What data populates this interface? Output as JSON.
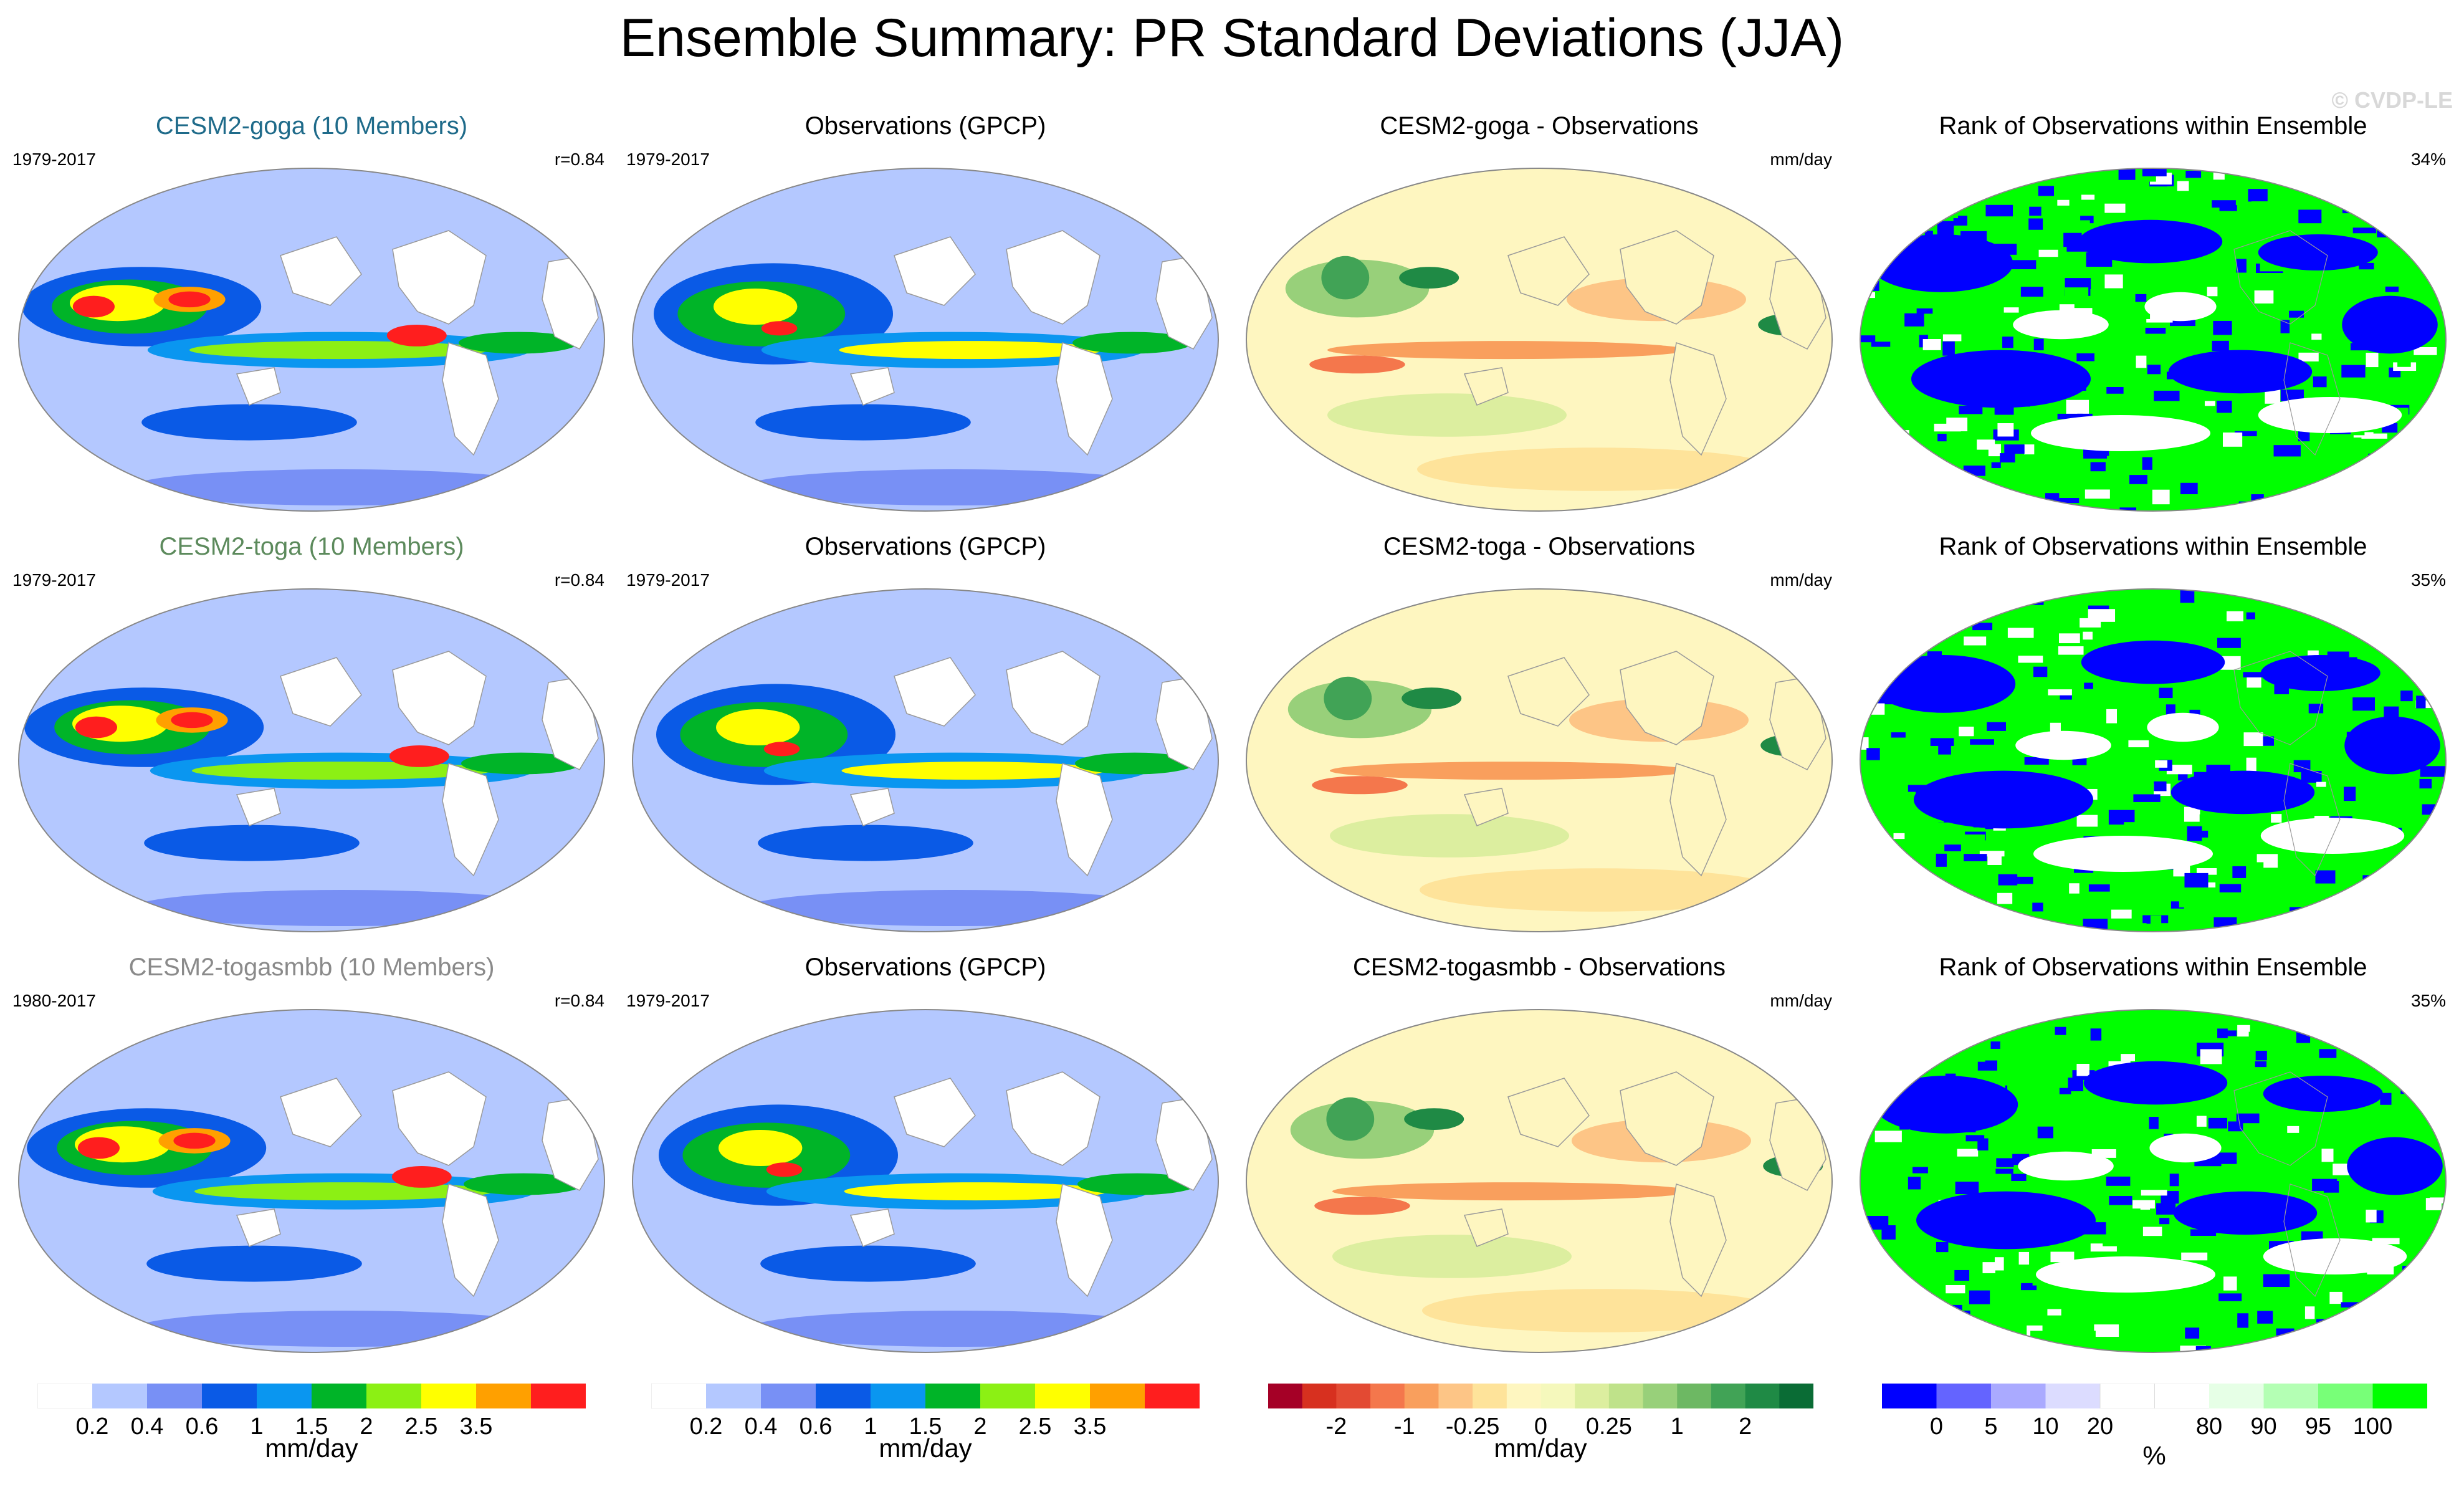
{
  "title": "Ensemble Summary: PR Standard Deviations (JJA)",
  "watermark": "© CVDP-LE",
  "rows": [
    {
      "model": "CESM2-goga (10 Members)",
      "model_color": "#1f6b8a",
      "model_period": "1979-2017",
      "pattern_corr": "r=0.84",
      "obs": "Observations (GPCP)",
      "obs_period": "1979-2017",
      "diff": "CESM2-goga - Observations",
      "diff_units": "mm/day",
      "rank": "Rank of Observations within Ensemble",
      "rank_pct": "34%"
    },
    {
      "model": "CESM2-toga (10 Members)",
      "model_color": "#5c8a5c",
      "model_period": "1979-2017",
      "pattern_corr": "r=0.84",
      "obs": "Observations (GPCP)",
      "obs_period": "1979-2017",
      "diff": "CESM2-toga - Observations",
      "diff_units": "mm/day",
      "rank": "Rank of Observations within Ensemble",
      "rank_pct": "35%"
    },
    {
      "model": "CESM2-togasmbb (10 Members)",
      "model_color": "#8a8a8a",
      "model_period": "1980-2017",
      "pattern_corr": "r=0.84",
      "obs": "Observations (GPCP)",
      "obs_period": "1979-2017",
      "diff": "CESM2-togasmbb - Observations",
      "diff_units": "mm/day",
      "rank": "Rank of Observations within Ensemble",
      "rank_pct": "35%"
    }
  ],
  "chart_data": [
    {
      "type": "heatmap",
      "name": "Standard deviation colorbar (model and observations)",
      "units": "mm/day",
      "colors": [
        "#ffffff",
        "#b4c8ff",
        "#7890f5",
        "#0a5ae6",
        "#0a96f0",
        "#00b428",
        "#8cf014",
        "#ffff00",
        "#ffa000",
        "#ff1e1e"
      ],
      "tick_labels": [
        "0.2",
        "0.4",
        "0.6",
        "1",
        "1.5",
        "2",
        "2.5",
        "3.5"
      ]
    },
    {
      "type": "heatmap",
      "name": "Difference colorbar",
      "units": "mm/day",
      "colors": [
        "#a50026",
        "#d7301f",
        "#e34a33",
        "#f4774c",
        "#f99f5d",
        "#fdc586",
        "#fee39a",
        "#fef6c0",
        "#f5f8bc",
        "#dcee9f",
        "#bfe28a",
        "#98d07a",
        "#6db863",
        "#41a356",
        "#1f8a45",
        "#0a6c35"
      ],
      "tick_labels": [
        "-2",
        "-1",
        "-0.25",
        "0",
        "0.25",
        "1",
        "2"
      ]
    },
    {
      "type": "heatmap",
      "name": "Rank colorbar",
      "units": "%",
      "colors": [
        "#0000ff",
        "#6464ff",
        "#aaaaff",
        "#dcdcff",
        "#ffffff",
        "#ffffff",
        "#e6ffe6",
        "#b4ffb4",
        "#78ff78",
        "#00ff00"
      ],
      "tick_labels": [
        "0",
        "5",
        "10",
        "20",
        "80",
        "90",
        "95",
        "100"
      ]
    }
  ]
}
